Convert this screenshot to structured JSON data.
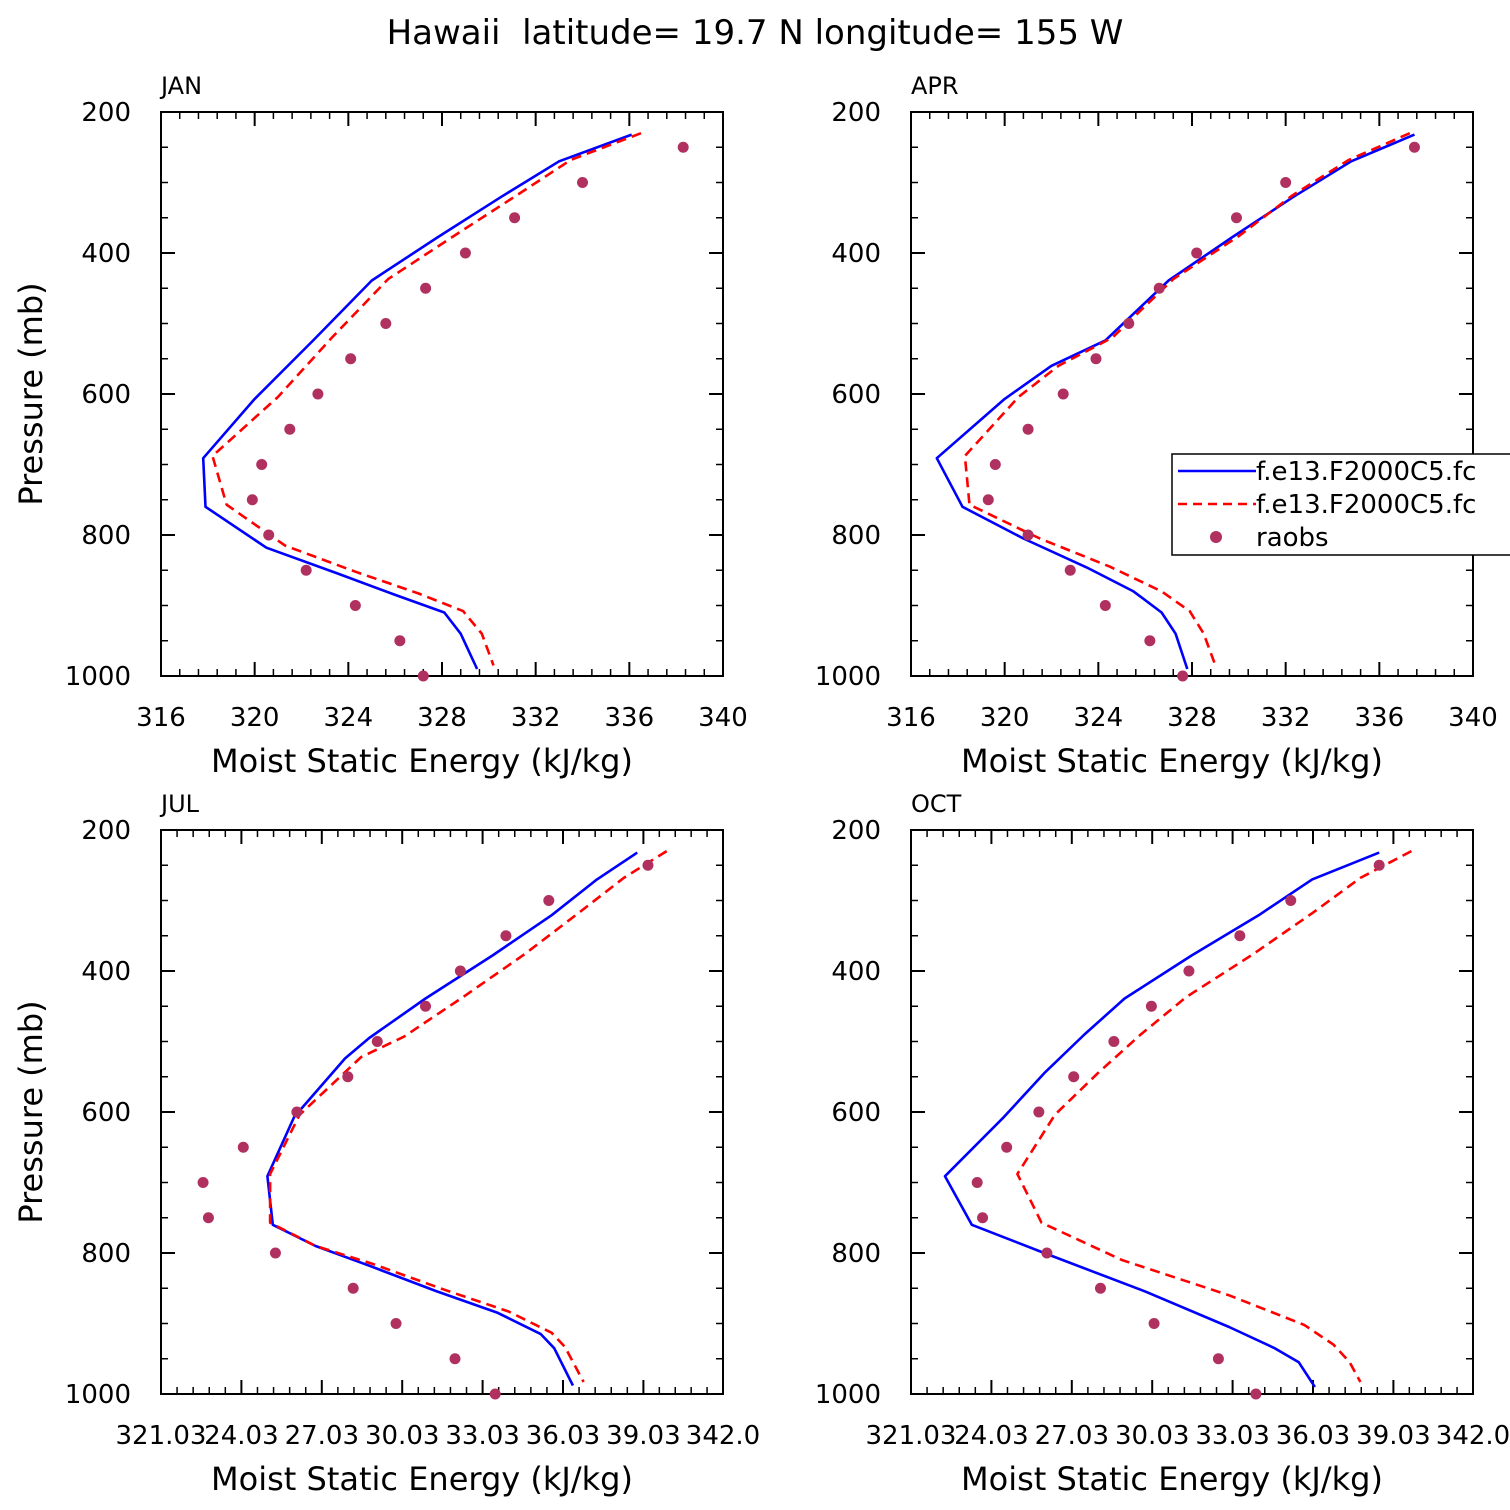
{
  "page_title": "Hawaii  latitude= 19.7 N longitude= 155 W",
  "legend": {
    "entries": [
      {
        "label": "f.e13.F2000C5.fc",
        "style": "solid",
        "color": "#0000ff"
      },
      {
        "label": "f.e13.F2000C5.fc",
        "style": "dashed",
        "color": "#ff0000"
      },
      {
        "label": "raobs",
        "style": "marker",
        "color": "#b03060"
      }
    ]
  },
  "colors": {
    "model_a": "#0000ff",
    "model_b": "#ff0000",
    "raobs": "#b03060",
    "axis": "#000000"
  },
  "chart_data": [
    {
      "type": "line",
      "title": "JAN",
      "xlabel": "Moist Static Energy (kJ/kg)",
      "ylabel": "Pressure (mb)",
      "xlim": [
        316,
        340
      ],
      "ylim": [
        200,
        1000
      ],
      "y_inverted": true,
      "xticks": [
        316,
        320,
        324,
        328,
        332,
        336,
        340
      ],
      "xtick_labels": [
        "316",
        "320",
        "324",
        "328",
        "332",
        "336",
        "340"
      ],
      "yticks": [
        200,
        400,
        600,
        800,
        1000
      ],
      "ytick_labels": [
        "200",
        "400",
        "600",
        "800",
        "1000"
      ],
      "series": [
        {
          "name": "f.e13.F2000C5.fc",
          "style": "solid",
          "color": "#0000ff",
          "x": [
            336.1,
            333.0,
            330.5,
            327.8,
            325.0,
            322.5,
            320.0,
            317.8,
            317.9,
            320.5,
            323.5,
            326.0,
            328.1,
            328.8,
            329.5
          ],
          "y": [
            232,
            270,
            321,
            378,
            439,
            524,
            607,
            691,
            760,
            818,
            854,
            885,
            910,
            940,
            990
          ]
        },
        {
          "name": "f.e13.F2000C5.fc",
          "style": "dashed",
          "color": "#ff0000",
          "x": [
            336.5,
            333.5,
            331.2,
            328.5,
            325.7,
            323.3,
            321.0,
            318.2,
            318.8,
            321.3,
            324.3,
            327.0,
            328.9,
            329.7,
            330.2
          ],
          "y": [
            230,
            268,
            318,
            376,
            437,
            520,
            604,
            688,
            757,
            815,
            852,
            883,
            908,
            940,
            985
          ]
        },
        {
          "name": "raobs",
          "style": "marker",
          "color": "#b03060",
          "x": [
            338.3,
            334.0,
            331.1,
            329.0,
            327.3,
            325.6,
            324.1,
            322.7,
            321.5,
            320.3,
            319.9,
            320.6,
            322.2,
            324.3,
            326.2,
            327.2
          ],
          "y": [
            250,
            300,
            350,
            400,
            450,
            500,
            550,
            600,
            650,
            700,
            750,
            800,
            850,
            900,
            950,
            1000
          ]
        }
      ]
    },
    {
      "type": "line",
      "title": "APR",
      "xlabel": "Moist Static Energy (kJ/kg)",
      "ylabel": "",
      "xlim": [
        316,
        340
      ],
      "ylim": [
        200,
        1000
      ],
      "y_inverted": true,
      "xticks": [
        316,
        320,
        324,
        328,
        332,
        336,
        340
      ],
      "xtick_labels": [
        "316",
        "320",
        "324",
        "328",
        "332",
        "336",
        "340"
      ],
      "yticks": [
        200,
        400,
        600,
        800,
        1000
      ],
      "ytick_labels": [
        "200",
        "400",
        "600",
        "800",
        "1000"
      ],
      "series": [
        {
          "name": "f.e13.F2000C5.fc",
          "style": "solid",
          "color": "#0000ff",
          "x": [
            337.5,
            334.8,
            332.3,
            329.7,
            327.0,
            324.3,
            322.0,
            320.0,
            317.1,
            318.2,
            320.8,
            323.5,
            325.5,
            326.7,
            327.3,
            327.8
          ],
          "y": [
            232,
            270,
            321,
            378,
            439,
            524,
            560,
            607,
            691,
            760,
            805,
            846,
            880,
            910,
            940,
            990
          ]
        },
        {
          "name": "f.e13.F2000C5.fc",
          "style": "dashed",
          "color": "#ff0000",
          "x": [
            337.3,
            334.7,
            332.3,
            330.0,
            327.2,
            324.6,
            322.3,
            320.6,
            318.3,
            318.5,
            321.5,
            324.5,
            326.7,
            327.9,
            328.5,
            329.0
          ],
          "y": [
            230,
            268,
            318,
            376,
            437,
            520,
            560,
            604,
            688,
            757,
            805,
            845,
            880,
            908,
            940,
            985
          ]
        },
        {
          "name": "raobs",
          "style": "marker",
          "color": "#b03060",
          "x": [
            337.5,
            332.0,
            329.9,
            328.2,
            326.6,
            325.3,
            323.9,
            322.5,
            321.0,
            319.6,
            319.3,
            321.0,
            322.8,
            324.3,
            326.2,
            327.6
          ],
          "y": [
            250,
            300,
            350,
            400,
            450,
            500,
            550,
            600,
            650,
            700,
            750,
            800,
            850,
            900,
            950,
            1000
          ]
        }
      ]
    },
    {
      "type": "line",
      "title": "JUL",
      "xlabel": "Moist Static Energy (kJ/kg)",
      "ylabel": "Pressure (mb)",
      "xlim": [
        321.03,
        342.0
      ],
      "ylim": [
        200,
        1000
      ],
      "y_inverted": true,
      "xticks": [
        321.03,
        324.03,
        327.03,
        330.03,
        333.03,
        336.03,
        339.03,
        342.0
      ],
      "xtick_labels": [
        "321.03",
        "24.03",
        "27.03",
        "30.03",
        "33.03",
        "36.03",
        "39.03",
        "342.0"
      ],
      "yticks": [
        200,
        400,
        600,
        800,
        1000
      ],
      "ytick_labels": [
        "200",
        "400",
        "600",
        "800",
        "1000"
      ],
      "series": [
        {
          "name": "f.e13.F2000C5.fc",
          "style": "solid",
          "color": "#0000ff",
          "x": [
            338.8,
            337.3,
            335.6,
            333.4,
            330.9,
            328.8,
            327.9,
            326.0,
            325.0,
            325.2,
            326.8,
            328.8,
            331.3,
            333.6,
            335.2,
            335.7,
            336.4
          ],
          "y": [
            232,
            270,
            321,
            378,
            439,
            495,
            524,
            607,
            691,
            760,
            790,
            818,
            854,
            885,
            915,
            935,
            988
          ]
        },
        {
          "name": "f.e13.F2000C5.fc",
          "style": "dashed",
          "color": "#ff0000",
          "x": [
            339.9,
            338.3,
            336.6,
            334.6,
            332.3,
            330.1,
            328.5,
            326.2,
            325.1,
            325.1,
            326.8,
            328.9,
            331.6,
            334.0,
            335.6,
            336.1,
            336.8
          ],
          "y": [
            230,
            268,
            318,
            376,
            437,
            493,
            522,
            604,
            688,
            757,
            790,
            815,
            852,
            883,
            913,
            933,
            983
          ]
        },
        {
          "name": "raobs",
          "style": "marker",
          "color": "#b03060",
          "x": [
            339.2,
            335.5,
            333.9,
            332.2,
            330.9,
            329.1,
            328.0,
            326.1,
            324.1,
            322.6,
            322.8,
            325.3,
            328.2,
            329.8,
            332.0,
            333.5
          ],
          "y": [
            250,
            300,
            350,
            400,
            450,
            500,
            550,
            600,
            650,
            700,
            750,
            800,
            850,
            900,
            950,
            1000
          ]
        }
      ]
    },
    {
      "type": "line",
      "title": "OCT",
      "xlabel": "Moist Static Energy (kJ/kg)",
      "ylabel": "",
      "xlim": [
        321.03,
        342.0
      ],
      "ylim": [
        200,
        1000
      ],
      "y_inverted": true,
      "xticks": [
        321.03,
        324.03,
        327.03,
        330.03,
        333.03,
        336.03,
        339.03,
        342.0
      ],
      "xtick_labels": [
        "321.03",
        "24.03",
        "27.03",
        "30.03",
        "33.03",
        "36.03",
        "39.03",
        "342.0"
      ],
      "yticks": [
        200,
        400,
        600,
        800,
        1000
      ],
      "ytick_labels": [
        "200",
        "400",
        "600",
        "800",
        "1000"
      ],
      "series": [
        {
          "name": "f.e13.F2000C5.fc",
          "style": "solid",
          "color": "#0000ff",
          "x": [
            338.5,
            336.0,
            334.0,
            331.5,
            329.0,
            327.5,
            326.0,
            324.5,
            322.3,
            323.3,
            326.0,
            329.8,
            332.9,
            334.6,
            335.5,
            336.1
          ],
          "y": [
            232,
            270,
            321,
            378,
            439,
            490,
            545,
            607,
            691,
            760,
            800,
            855,
            905,
            935,
            955,
            990
          ]
        },
        {
          "name": "f.e13.F2000C5.fc",
          "style": "dashed",
          "color": "#ff0000",
          "x": [
            339.7,
            337.8,
            336.0,
            333.8,
            331.3,
            329.6,
            328.0,
            326.4,
            325.0,
            325.9,
            328.9,
            332.9,
            335.7,
            336.8,
            337.4,
            337.8
          ],
          "y": [
            230,
            268,
            318,
            376,
            437,
            490,
            545,
            604,
            688,
            757,
            810,
            860,
            902,
            930,
            955,
            983
          ]
        },
        {
          "name": "raobs",
          "style": "marker",
          "color": "#b03060",
          "x": [
            338.5,
            335.2,
            333.3,
            331.4,
            330.0,
            328.6,
            327.1,
            325.8,
            324.6,
            323.5,
            323.7,
            326.1,
            328.1,
            330.1,
            332.5,
            333.9
          ],
          "y": [
            250,
            300,
            350,
            400,
            450,
            500,
            550,
            600,
            650,
            700,
            750,
            800,
            850,
            900,
            950,
            1000
          ]
        }
      ]
    }
  ]
}
